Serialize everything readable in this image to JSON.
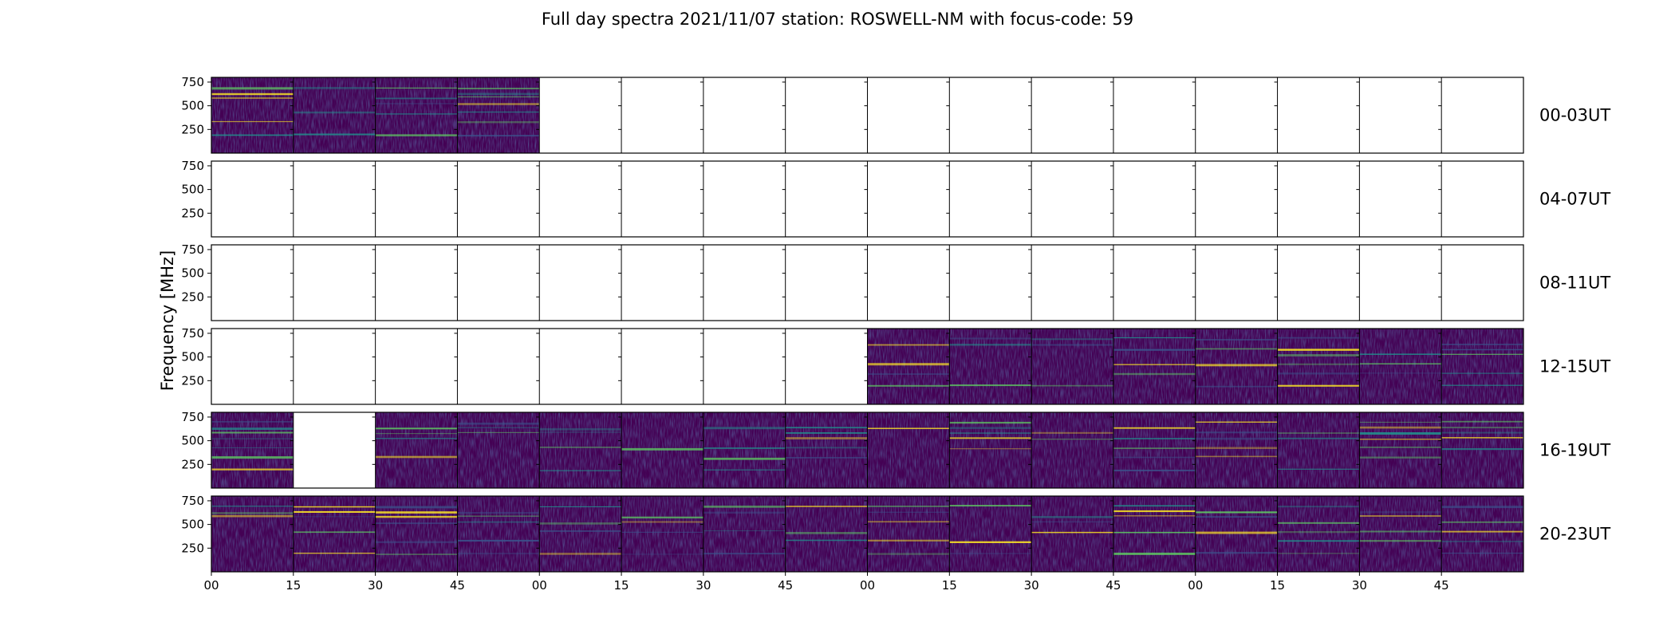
{
  "chart_data": {
    "type": "heatmap",
    "title": "Full day spectra 2021/11/07 station: ROSWELL-NM with focus-code: 59",
    "ylabel": "Frequency [MHz]",
    "xlabel": "",
    "y_ticks": [
      250,
      500,
      750
    ],
    "ylim": [
      0,
      800
    ],
    "x_tick_labels": [
      "00",
      "15",
      "30",
      "45",
      "00",
      "15",
      "30",
      "45",
      "00",
      "15",
      "30",
      "45",
      "00",
      "15",
      "30",
      "45"
    ],
    "colormap": [
      "#440154",
      "#3b528b",
      "#21918c",
      "#5ec962",
      "#fde725"
    ],
    "empty_color": "#ffffff",
    "panels_per_row": 16,
    "rows": [
      {
        "label": "00-03UT",
        "has_data": [
          1,
          1,
          1,
          1,
          0,
          0,
          0,
          0,
          0,
          0,
          0,
          0,
          0,
          0,
          0,
          0
        ]
      },
      {
        "label": "04-07UT",
        "has_data": [
          0,
          0,
          0,
          0,
          0,
          0,
          0,
          0,
          0,
          0,
          0,
          0,
          0,
          0,
          0,
          0
        ]
      },
      {
        "label": "08-11UT",
        "has_data": [
          0,
          0,
          0,
          0,
          0,
          0,
          0,
          0,
          0,
          0,
          0,
          0,
          0,
          0,
          0,
          0
        ]
      },
      {
        "label": "12-15UT",
        "has_data": [
          0,
          0,
          0,
          0,
          0,
          0,
          0,
          0,
          1,
          1,
          1,
          1,
          1,
          1,
          1,
          1
        ]
      },
      {
        "label": "16-19UT",
        "has_data": [
          1,
          0,
          1,
          1,
          1,
          1,
          1,
          1,
          1,
          1,
          1,
          1,
          1,
          1,
          1,
          1
        ]
      },
      {
        "label": "20-23UT",
        "has_data": [
          1,
          1,
          1,
          1,
          1,
          1,
          1,
          1,
          1,
          1,
          1,
          1,
          1,
          1,
          1,
          1
        ]
      }
    ]
  }
}
